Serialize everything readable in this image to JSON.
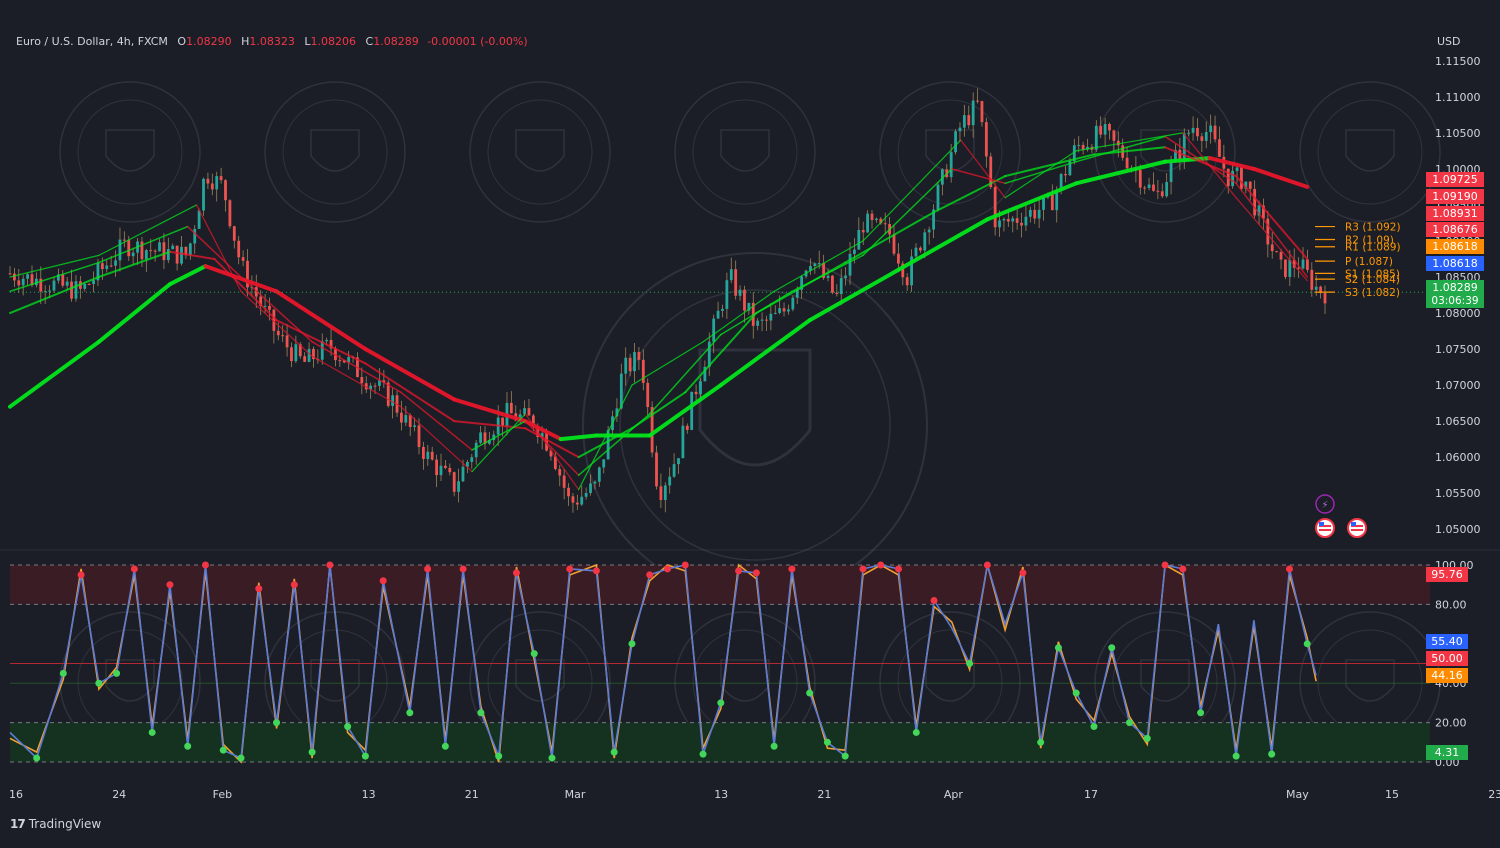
{
  "header": {
    "symbol": "Euro / U.S. Dollar, 4h, FXCM",
    "open_label": "O",
    "open": "1.08290",
    "high_label": "H",
    "high": "1.08323",
    "low_label": "L",
    "low": "1.08206",
    "close_label": "C",
    "close": "1.08289",
    "change": "-0.00001 (-0.00%)"
  },
  "currency": "USD",
  "brand": {
    "logo": "17",
    "name": "TradingView"
  },
  "chart_data": [
    {
      "type": "candlestick",
      "symbol": "EUR/USD",
      "timeframe": "4h",
      "xlabel": "",
      "ylabel": "",
      "x_ticks": [
        "16",
        "24",
        "Feb",
        "13",
        "21",
        "Mar",
        "13",
        "21",
        "Apr",
        "17",
        "May",
        "15",
        "23"
      ],
      "y_ticks": [
        "1.05000",
        "1.05500",
        "1.06000",
        "1.06500",
        "1.07000",
        "1.07500",
        "1.08000",
        "1.08500",
        "1.09000",
        "1.09500",
        "1.10000",
        "1.10500",
        "1.11000",
        "1.11500"
      ],
      "ylim": [
        1.0485,
        1.1165
      ],
      "price_path": [
        {
          "x": 0,
          "y": 1.0855
        },
        {
          "x": 8,
          "y": 1.083
        },
        {
          "x": 13,
          "y": 1.0895
        },
        {
          "x": 17,
          "y": 1.0885
        },
        {
          "x": 20,
          "y": 1.088
        },
        {
          "x": 22,
          "y": 1.0995
        },
        {
          "x": 24,
          "y": 1.0975
        },
        {
          "x": 26,
          "y": 1.0865
        },
        {
          "x": 30,
          "y": 1.077
        },
        {
          "x": 33,
          "y": 1.073
        },
        {
          "x": 36,
          "y": 1.0755
        },
        {
          "x": 40,
          "y": 1.071
        },
        {
          "x": 43,
          "y": 1.068
        },
        {
          "x": 47,
          "y": 1.06
        },
        {
          "x": 50,
          "y": 1.056
        },
        {
          "x": 53,
          "y": 1.063
        },
        {
          "x": 56,
          "y": 1.066
        },
        {
          "x": 59,
          "y": 1.065
        },
        {
          "x": 61,
          "y": 1.061
        },
        {
          "x": 63,
          "y": 1.0535
        },
        {
          "x": 66,
          "y": 1.056
        },
        {
          "x": 69,
          "y": 1.072
        },
        {
          "x": 71,
          "y": 1.074
        },
        {
          "x": 73,
          "y": 1.055
        },
        {
          "x": 75,
          "y": 1.06
        },
        {
          "x": 78,
          "y": 1.073
        },
        {
          "x": 81,
          "y": 1.085
        },
        {
          "x": 84,
          "y": 1.078
        },
        {
          "x": 87,
          "y": 1.08
        },
        {
          "x": 90,
          "y": 1.088
        },
        {
          "x": 93,
          "y": 1.082
        },
        {
          "x": 96,
          "y": 1.0925
        },
        {
          "x": 99,
          "y": 1.091
        },
        {
          "x": 101,
          "y": 1.085
        },
        {
          "x": 104,
          "y": 1.095
        },
        {
          "x": 107,
          "y": 1.106
        },
        {
          "x": 109,
          "y": 1.109
        },
        {
          "x": 111,
          "y": 1.092
        },
        {
          "x": 114,
          "y": 1.0935
        },
        {
          "x": 117,
          "y": 1.095
        },
        {
          "x": 120,
          "y": 1.103
        },
        {
          "x": 123,
          "y": 1.105
        },
        {
          "x": 126,
          "y": 1.101
        },
        {
          "x": 129,
          "y": 1.096
        },
        {
          "x": 131,
          "y": 1.101
        },
        {
          "x": 133,
          "y": 1.106
        },
        {
          "x": 135,
          "y": 1.105
        },
        {
          "x": 137,
          "y": 1.099
        },
        {
          "x": 139,
          "y": 1.0985
        },
        {
          "x": 141,
          "y": 1.092
        },
        {
          "x": 143,
          "y": 1.086
        },
        {
          "x": 145,
          "y": 1.087
        },
        {
          "x": 147,
          "y": 1.0835
        },
        {
          "x": 148,
          "y": 1.0829
        }
      ],
      "moving_averages": [
        {
          "name": "",
          "color": "#00e61b",
          "down_color": "#e8162b",
          "width": 4,
          "points": [
            {
              "x": 0,
              "y": 1.067
            },
            {
              "x": 10,
              "y": 1.076
            },
            {
              "x": 18,
              "y": 1.084
            },
            {
              "x": 22,
              "y": 1.0865
            },
            {
              "x": 30,
              "y": 1.083
            },
            {
              "x": 40,
              "y": 1.075
            },
            {
              "x": 50,
              "y": 1.068
            },
            {
              "x": 58,
              "y": 1.065
            },
            {
              "x": 62,
              "y": 1.0625
            },
            {
              "x": 66,
              "y": 1.063
            },
            {
              "x": 72,
              "y": 1.063
            },
            {
              "x": 80,
              "y": 1.07
            },
            {
              "x": 90,
              "y": 1.079
            },
            {
              "x": 100,
              "y": 1.086
            },
            {
              "x": 110,
              "y": 1.093
            },
            {
              "x": 120,
              "y": 1.098
            },
            {
              "x": 130,
              "y": 1.101
            },
            {
              "x": 135,
              "y": 1.1015
            },
            {
              "x": 140,
              "y": 1.1
            },
            {
              "x": 146,
              "y": 1.0975
            }
          ]
        },
        {
          "name": "",
          "color": "#00e61b",
          "down_color": "#e8162b",
          "width": 2,
          "points": [
            {
              "x": 0,
              "y": 1.08
            },
            {
              "x": 10,
              "y": 1.085
            },
            {
              "x": 18,
              "y": 1.0885
            },
            {
              "x": 23,
              "y": 1.0875
            },
            {
              "x": 30,
              "y": 1.079
            },
            {
              "x": 40,
              "y": 1.073
            },
            {
              "x": 50,
              "y": 1.065
            },
            {
              "x": 58,
              "y": 1.064
            },
            {
              "x": 64,
              "y": 1.06
            },
            {
              "x": 70,
              "y": 1.064
            },
            {
              "x": 76,
              "y": 1.069
            },
            {
              "x": 84,
              "y": 1.08
            },
            {
              "x": 94,
              "y": 1.087
            },
            {
              "x": 104,
              "y": 1.094
            },
            {
              "x": 112,
              "y": 1.099
            },
            {
              "x": 122,
              "y": 1.102
            },
            {
              "x": 130,
              "y": 1.103
            },
            {
              "x": 138,
              "y": 1.099
            },
            {
              "x": 146,
              "y": 1.0875
            }
          ]
        },
        {
          "name": "",
          "color": "#00e61b",
          "down_color": "#e8162b",
          "width": 1.5,
          "points": [
            {
              "x": 0,
              "y": 1.083
            },
            {
              "x": 10,
              "y": 1.087
            },
            {
              "x": 20,
              "y": 1.092
            },
            {
              "x": 26,
              "y": 1.085
            },
            {
              "x": 34,
              "y": 1.076
            },
            {
              "x": 44,
              "y": 1.069
            },
            {
              "x": 52,
              "y": 1.061
            },
            {
              "x": 58,
              "y": 1.065
            },
            {
              "x": 64,
              "y": 1.0575
            },
            {
              "x": 72,
              "y": 1.066
            },
            {
              "x": 80,
              "y": 1.077
            },
            {
              "x": 88,
              "y": 1.083
            },
            {
              "x": 96,
              "y": 1.088
            },
            {
              "x": 106,
              "y": 1.1
            },
            {
              "x": 112,
              "y": 1.098
            },
            {
              "x": 120,
              "y": 1.101
            },
            {
              "x": 130,
              "y": 1.1045
            },
            {
              "x": 138,
              "y": 1.098
            },
            {
              "x": 146,
              "y": 1.085
            }
          ]
        },
        {
          "name": "",
          "color": "#00e61b",
          "down_color": "#e8162b",
          "width": 1.2,
          "points": [
            {
              "x": 0,
              "y": 1.085
            },
            {
              "x": 10,
              "y": 1.088
            },
            {
              "x": 21,
              "y": 1.095
            },
            {
              "x": 26,
              "y": 1.083
            },
            {
              "x": 34,
              "y": 1.074
            },
            {
              "x": 44,
              "y": 1.067
            },
            {
              "x": 52,
              "y": 1.058
            },
            {
              "x": 58,
              "y": 1.066
            },
            {
              "x": 64,
              "y": 1.0555
            },
            {
              "x": 70,
              "y": 1.07
            },
            {
              "x": 78,
              "y": 1.076
            },
            {
              "x": 86,
              "y": 1.083
            },
            {
              "x": 96,
              "y": 1.09
            },
            {
              "x": 107,
              "y": 1.104
            },
            {
              "x": 112,
              "y": 1.096
            },
            {
              "x": 120,
              "y": 1.1025
            },
            {
              "x": 132,
              "y": 1.105
            },
            {
              "x": 138,
              "y": 1.096
            },
            {
              "x": 146,
              "y": 1.0845
            }
          ]
        }
      ],
      "pivots": [
        {
          "label": "R3 (1.092)",
          "value": 1.092
        },
        {
          "label": "R2 (1.09)",
          "value": 1.0902
        },
        {
          "label": "R1 (1.089)",
          "value": 1.0892
        },
        {
          "label": "P (1.087)",
          "value": 1.0872
        },
        {
          "label": "S1 (1.085)",
          "value": 1.0855
        },
        {
          "label": "S2 (1.084)",
          "value": 1.0847
        },
        {
          "label": "S3 (1.082)",
          "value": 1.0829
        }
      ],
      "price_tags": [
        {
          "text": "1.09725",
          "value": 1.09725,
          "color": "#f23645"
        },
        {
          "text": "1.09190",
          "value": 1.0919,
          "color": "#f23645"
        },
        {
          "text": "1.08931",
          "value": 1.08931,
          "color": "#f23645"
        },
        {
          "text": "1.08676",
          "value": 1.08676,
          "color": "#f23645"
        },
        {
          "text": "1.08618",
          "value": 1.08618,
          "color": "#ff8c00"
        },
        {
          "text": "1.08618",
          "value": 1.08618,
          "color": "#2962ff"
        },
        {
          "text": "1.08289",
          "value": 1.08289,
          "color": "#22ab4b",
          "sub": "03:06:39"
        }
      ],
      "last_price": 1.08289
    },
    {
      "type": "line",
      "name": "",
      "ylim": [
        0,
        100
      ],
      "y_ticks": [
        "0.00",
        "20.00",
        "40.00",
        "60.00",
        "80.00",
        "100.00"
      ],
      "zones": {
        "overbought": [
          80,
          100
        ],
        "oversold": [
          0,
          20
        ],
        "midline": 50
      },
      "series": [
        {
          "name": "",
          "color": "#5b7bd6"
        },
        {
          "name": "",
          "color": "#f0a030"
        }
      ],
      "peaks": [
        {
          "x": 0,
          "y": 15
        },
        {
          "x": 3,
          "y": 2
        },
        {
          "x": 6,
          "y": 45
        },
        {
          "x": 8,
          "y": 95
        },
        {
          "x": 10,
          "y": 40
        },
        {
          "x": 12,
          "y": 45
        },
        {
          "x": 14,
          "y": 98
        },
        {
          "x": 16,
          "y": 15
        },
        {
          "x": 18,
          "y": 90
        },
        {
          "x": 20,
          "y": 8
        },
        {
          "x": 22,
          "y": 100
        },
        {
          "x": 24,
          "y": 6
        },
        {
          "x": 26,
          "y": 2
        },
        {
          "x": 28,
          "y": 88
        },
        {
          "x": 30,
          "y": 20
        },
        {
          "x": 32,
          "y": 90
        },
        {
          "x": 34,
          "y": 5
        },
        {
          "x": 36,
          "y": 100
        },
        {
          "x": 38,
          "y": 18
        },
        {
          "x": 40,
          "y": 3
        },
        {
          "x": 42,
          "y": 92
        },
        {
          "x": 45,
          "y": 25
        },
        {
          "x": 47,
          "y": 98
        },
        {
          "x": 49,
          "y": 8
        },
        {
          "x": 51,
          "y": 98
        },
        {
          "x": 53,
          "y": 25
        },
        {
          "x": 55,
          "y": 3
        },
        {
          "x": 57,
          "y": 96
        },
        {
          "x": 59,
          "y": 55
        },
        {
          "x": 61,
          "y": 2
        },
        {
          "x": 63,
          "y": 98
        },
        {
          "x": 66,
          "y": 97
        },
        {
          "x": 68,
          "y": 5
        },
        {
          "x": 70,
          "y": 60
        },
        {
          "x": 72,
          "y": 95
        },
        {
          "x": 74,
          "y": 98
        },
        {
          "x": 76,
          "y": 100
        },
        {
          "x": 78,
          "y": 4
        },
        {
          "x": 80,
          "y": 30
        },
        {
          "x": 82,
          "y": 97
        },
        {
          "x": 84,
          "y": 96
        },
        {
          "x": 86,
          "y": 8
        },
        {
          "x": 88,
          "y": 98
        },
        {
          "x": 90,
          "y": 35
        },
        {
          "x": 92,
          "y": 10
        },
        {
          "x": 94,
          "y": 3
        },
        {
          "x": 96,
          "y": 98
        },
        {
          "x": 98,
          "y": 100
        },
        {
          "x": 100,
          "y": 98
        },
        {
          "x": 102,
          "y": 15
        },
        {
          "x": 104,
          "y": 82
        },
        {
          "x": 106,
          "y": 68
        },
        {
          "x": 108,
          "y": 50
        },
        {
          "x": 110,
          "y": 100
        },
        {
          "x": 112,
          "y": 70
        },
        {
          "x": 114,
          "y": 96
        },
        {
          "x": 116,
          "y": 10
        },
        {
          "x": 118,
          "y": 58
        },
        {
          "x": 120,
          "y": 35
        },
        {
          "x": 122,
          "y": 18
        },
        {
          "x": 124,
          "y": 58
        },
        {
          "x": 126,
          "y": 20
        },
        {
          "x": 128,
          "y": 12
        },
        {
          "x": 130,
          "y": 100
        },
        {
          "x": 132,
          "y": 98
        },
        {
          "x": 134,
          "y": 25
        },
        {
          "x": 136,
          "y": 70
        },
        {
          "x": 138,
          "y": 3
        },
        {
          "x": 140,
          "y": 72
        },
        {
          "x": 142,
          "y": 4
        },
        {
          "x": 144,
          "y": 98
        },
        {
          "x": 146,
          "y": 60
        },
        {
          "x": 147,
          "y": 44
        }
      ],
      "tags": [
        {
          "text": "95.76",
          "value": 95.76,
          "color": "#f23645"
        },
        {
          "text": "55.40",
          "value": 55.4,
          "color": "#2962ff"
        },
        {
          "text": "50.00",
          "value": 50.0,
          "color": "#f23645"
        },
        {
          "text": "44.16",
          "value": 44.16,
          "color": "#ff8c00"
        },
        {
          "text": "4.31",
          "value": 4.31,
          "color": "#22ab4b"
        }
      ]
    }
  ],
  "colors": {
    "background": "#1b1e27",
    "up_candle": "#26a69a",
    "down_candle": "#ef5350",
    "ma_up": "#00e61b",
    "ma_down": "#e8162b",
    "pivot": "#ff9800",
    "overbought_zone": "#3a1c24",
    "oversold_zone": "#15311f",
    "peak_dot": "#f23645",
    "trough_dot": "#43d65a"
  },
  "icons": {
    "alert": "lightning-icon",
    "event": "us-flag-icon"
  }
}
